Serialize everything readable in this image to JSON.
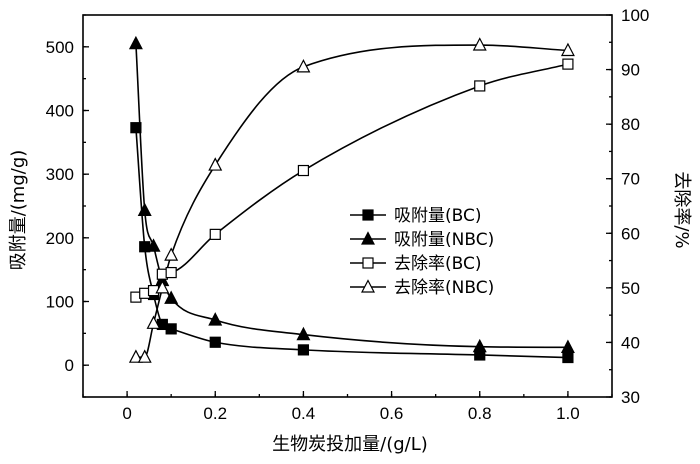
{
  "chart_data": {
    "type": "scatter",
    "xlabel": "生物炭投加量/(g/L)",
    "ylabel_left": "吸附量/(mg/g)",
    "ylabel_right": "去除率/%",
    "xlim": [
      -0.1,
      1.1
    ],
    "ylim_left": [
      -50,
      550
    ],
    "ylim_right": [
      30,
      100
    ],
    "x_ticks": [
      "0",
      "0.2",
      "0.4",
      "0.6",
      "0.8",
      "1.0"
    ],
    "x_tick_values": [
      0,
      0.2,
      0.4,
      0.6,
      0.8,
      1.0
    ],
    "y_ticks_left": [
      "0",
      "100",
      "200",
      "300",
      "400",
      "500"
    ],
    "y_tick_values_left": [
      0,
      100,
      200,
      300,
      400,
      500
    ],
    "y_ticks_right": [
      "30",
      "40",
      "50",
      "60",
      "70",
      "80",
      "90",
      "100"
    ],
    "y_tick_values_right": [
      30,
      40,
      50,
      60,
      70,
      80,
      90,
      100
    ],
    "legend_position": "center-right",
    "grid": false,
    "series": [
      {
        "name": "吸附量(BC)",
        "axis": "left",
        "marker": "square-filled",
        "x": [
          0.02,
          0.04,
          0.06,
          0.08,
          0.1,
          0.2,
          0.4,
          0.8,
          1.0
        ],
        "y": [
          373,
          186,
          111,
          64,
          57,
          36,
          24,
          16,
          12
        ]
      },
      {
        "name": "吸附量(NBC)",
        "axis": "left",
        "marker": "triangle-filled",
        "x": [
          0.02,
          0.04,
          0.06,
          0.08,
          0.1,
          0.2,
          0.4,
          0.8,
          1.0
        ],
        "y": [
          505,
          243,
          187,
          133,
          105,
          71,
          48,
          29,
          28
        ]
      },
      {
        "name": "去除率(BC)",
        "axis": "right",
        "marker": "square-open",
        "x": [
          0.02,
          0.04,
          0.06,
          0.08,
          0.1,
          0.2,
          0.4,
          0.8,
          1.0
        ],
        "y": [
          48.3,
          49.0,
          49.5,
          52.5,
          52.8,
          59.8,
          71.5,
          87.0,
          91.0
        ]
      },
      {
        "name": "去除率(NBC)",
        "axis": "right",
        "marker": "triangle-open",
        "x": [
          0.02,
          0.04,
          0.06,
          0.08,
          0.1,
          0.2,
          0.4,
          0.8,
          1.0
        ],
        "y": [
          37.3,
          37.3,
          43.5,
          50.0,
          56.0,
          72.5,
          90.5,
          94.5,
          93.5
        ]
      }
    ]
  }
}
